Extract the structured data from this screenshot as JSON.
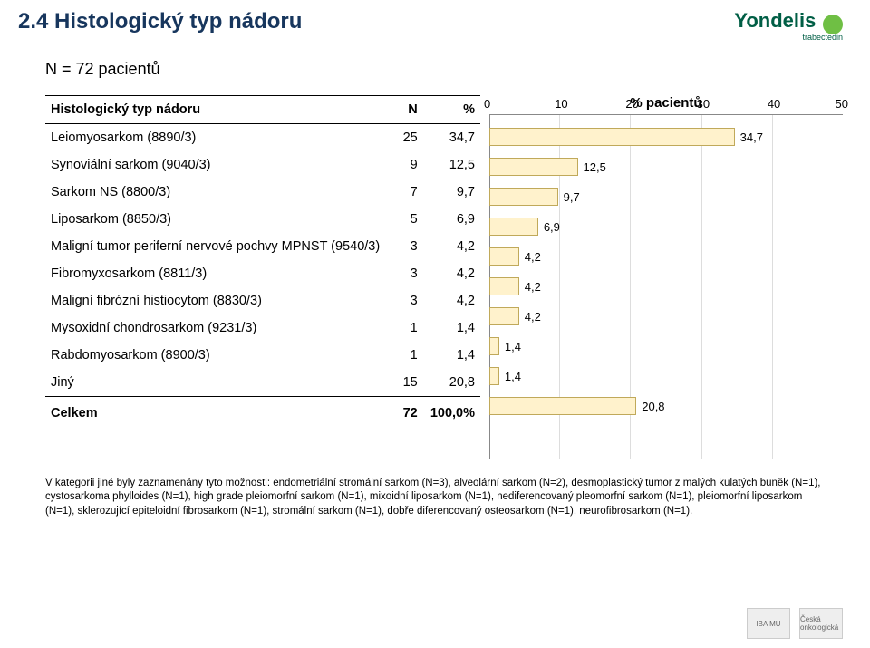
{
  "title": "2.4 Histologický typ nádoru",
  "brand": {
    "name": "Yondelis",
    "sub": "trabectedin"
  },
  "sample": "N = 72 pacientů",
  "table": {
    "columns": [
      "Histologický typ nádoru",
      "N",
      "%"
    ],
    "rows": [
      {
        "label": "Leiomyosarkom (8890/3)",
        "n": "25",
        "pct": "34,7"
      },
      {
        "label": "Synoviální sarkom (9040/3)",
        "n": "9",
        "pct": "12,5"
      },
      {
        "label": "Sarkom NS (8800/3)",
        "n": "7",
        "pct": "9,7"
      },
      {
        "label": "Liposarkom (8850/3)",
        "n": "5",
        "pct": "6,9"
      },
      {
        "label": "Maligní tumor periferní nervové pochvy MPNST (9540/3)",
        "n": "3",
        "pct": "4,2"
      },
      {
        "label": "Fibromyxosarkom (8811/3)",
        "n": "3",
        "pct": "4,2"
      },
      {
        "label": "Maligní fibrózní histiocytom (8830/3)",
        "n": "3",
        "pct": "4,2"
      },
      {
        "label": "Mysoxidní chondrosarkom (9231/3)",
        "n": "1",
        "pct": "1,4"
      },
      {
        "label": "Rabdomyosarkom (8900/3)",
        "n": "1",
        "pct": "1,4"
      },
      {
        "label": "Jiný",
        "n": "15",
        "pct": "20,8"
      }
    ],
    "total": {
      "label": "Celkem",
      "n": "72",
      "pct": "100,0%"
    }
  },
  "chart": {
    "type": "bar-horizontal",
    "title": "% pacientů",
    "xmax": 50,
    "ticks": [
      0,
      10,
      20,
      30,
      40,
      50
    ],
    "bar_color": "#fff2cc",
    "bar_border": "#c0a95a",
    "grid_color": "#dddddd",
    "axis_color": "#888888",
    "bars": [
      {
        "value": 34.7,
        "label": "34,7"
      },
      {
        "value": 12.5,
        "label": "12,5"
      },
      {
        "value": 9.7,
        "label": "9,7"
      },
      {
        "value": 6.9,
        "label": "6,9"
      },
      {
        "value": 4.2,
        "label": "4,2"
      },
      {
        "value": 4.2,
        "label": "4,2"
      },
      {
        "value": 4.2,
        "label": "4,2"
      },
      {
        "value": 1.4,
        "label": "1,4"
      },
      {
        "value": 1.4,
        "label": "1,4"
      },
      {
        "value": 20.8,
        "label": "20,8"
      }
    ]
  },
  "footnote": "V kategorii jiné byly zaznamenány tyto možnosti: endometriální stromální sarkom (N=3), alveolární sarkom (N=2), desmoplastický tumor z malých kulatých buněk (N=1), cystosarkoma phylloides (N=1), high grade pleiomorfní sarkom (N=1), mixoidní liposarkom (N=1), nediferencovaný pleomorfní sarkom (N=1), pleiomorfní liposarkom (N=1), sklerozující epiteloidní fibrosarkom (N=1), stromální sarkom (N=1), dobře diferencovaný osteosarkom (N=1), neurofibrosarkom (N=1).",
  "footer_logos": [
    "IBA MU",
    "Česká onkologická"
  ]
}
